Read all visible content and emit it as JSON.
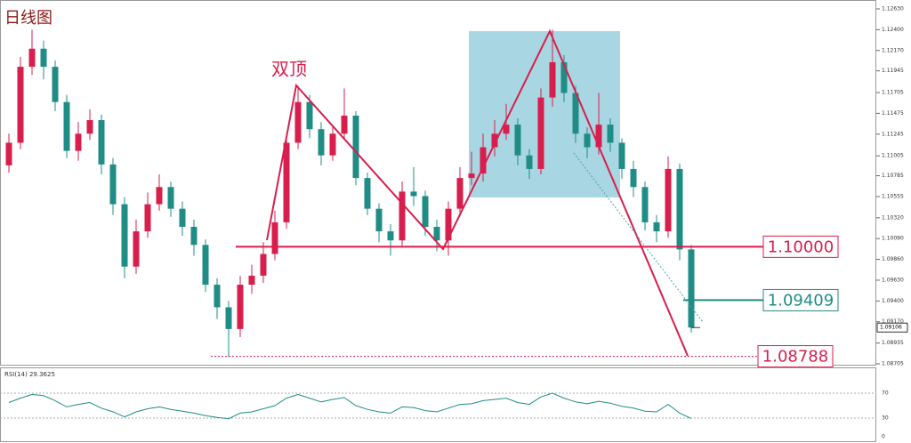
{
  "chart_data": {
    "type": "candlestick",
    "title": "日线图",
    "annotation": "双顶",
    "up_color": "#d81e4c",
    "down_color": "#1f8c86",
    "open": [
      1.109,
      1.1115,
      1.1199,
      1.1219,
      1.1199,
      1.116,
      1.1106,
      1.1125,
      1.114,
      1.1091,
      1.1047,
      1.0978,
      1.1017,
      1.1047,
      1.1066,
      1.1042,
      1.1022,
      1.1002,
      1.0958,
      1.0933,
      1.0909,
      1.0958,
      1.0968,
      1.0992,
      1.1027,
      1.1115,
      1.116,
      1.113,
      1.1101,
      1.1125,
      1.1145,
      1.1076,
      1.1042,
      1.1017,
      1.1007,
      1.1061,
      1.1056,
      1.1022,
      1.1007,
      1.1042,
      1.1076,
      1.1081,
      1.111,
      1.1125,
      1.1135,
      1.1101,
      1.1086,
      1.1165,
      1.1204,
      1.117,
      1.1125,
      1.111,
      1.1135,
      1.1115,
      1.1086,
      1.1066,
      1.1027,
      1.1017,
      1.1086,
      1.0997
    ],
    "high": [
      1.1125,
      1.121,
      1.124,
      1.1228,
      1.1206,
      1.1168,
      1.1138,
      1.1152,
      1.1146,
      1.1098,
      1.1055,
      1.103,
      1.106,
      1.108,
      1.1072,
      1.105,
      1.103,
      1.1008,
      1.0965,
      1.094,
      1.0968,
      1.098,
      1.1005,
      1.104,
      1.1125,
      1.1178,
      1.1168,
      1.1138,
      1.1135,
      1.1175,
      1.115,
      1.1082,
      1.1048,
      1.1025,
      1.1072,
      1.1088,
      1.1062,
      1.103,
      1.105,
      1.1088,
      1.1105,
      1.1125,
      1.114,
      1.1158,
      1.1142,
      1.1108,
      1.1175,
      1.124,
      1.1212,
      1.1178,
      1.1132,
      1.117,
      1.1142,
      1.112,
      1.1095,
      1.1072,
      1.1035,
      1.11,
      1.1092,
      1.1002
    ],
    "low": [
      1.1082,
      1.1108,
      1.119,
      1.1185,
      1.115,
      1.1098,
      1.1095,
      1.1118,
      1.108,
      1.1035,
      1.0965,
      1.097,
      1.101,
      1.104,
      1.1033,
      1.1012,
      1.099,
      1.095,
      1.092,
      1.0878,
      1.09,
      1.0948,
      1.096,
      1.0985,
      1.102,
      1.1108,
      1.112,
      1.109,
      1.1095,
      1.1118,
      1.1068,
      1.1035,
      1.1005,
      1.099,
      1.1,
      1.1045,
      1.1012,
      1.0995,
      1.099,
      1.1035,
      1.1068,
      1.1072,
      1.11,
      1.1118,
      1.109,
      1.1075,
      1.108,
      1.1155,
      1.116,
      1.1115,
      1.1098,
      1.1102,
      1.1105,
      1.1075,
      1.1055,
      1.1018,
      1.1005,
      1.101,
      1.0985,
      1.0905
    ],
    "close": [
      1.1115,
      1.1199,
      1.1219,
      1.1199,
      1.116,
      1.1106,
      1.1125,
      1.114,
      1.1091,
      1.1047,
      1.0978,
      1.1017,
      1.1047,
      1.1066,
      1.1042,
      1.1022,
      1.1002,
      1.0958,
      1.0933,
      1.0909,
      1.0958,
      1.0968,
      1.0992,
      1.1027,
      1.1115,
      1.116,
      1.113,
      1.1101,
      1.1125,
      1.1145,
      1.1076,
      1.1042,
      1.1017,
      1.1007,
      1.1061,
      1.1056,
      1.1022,
      1.1007,
      1.1042,
      1.1076,
      1.1081,
      1.111,
      1.1125,
      1.1135,
      1.1101,
      1.1086,
      1.1165,
      1.1204,
      1.117,
      1.1125,
      1.111,
      1.1135,
      1.1115,
      1.1086,
      1.1066,
      1.1027,
      1.1017,
      1.1086,
      1.0997,
      1.09106
    ],
    "ylim": [
      1.08705,
      1.1263
    ],
    "yticks": [
      {
        "value": 1.1263,
        "label": "1.12630"
      },
      {
        "value": 1.124,
        "label": "1.12400"
      },
      {
        "value": 1.1217,
        "label": "1.12170"
      },
      {
        "value": 1.11945,
        "label": "1.11945"
      },
      {
        "value": 1.11705,
        "label": "1.11705"
      },
      {
        "value": 1.11475,
        "label": "1.11475"
      },
      {
        "value": 1.11245,
        "label": "1.11245"
      },
      {
        "value": 1.11005,
        "label": "1.11005"
      },
      {
        "value": 1.10785,
        "label": "1.10785"
      },
      {
        "value": 1.10555,
        "label": "1.10555"
      },
      {
        "value": 1.1032,
        "label": "1.10320"
      },
      {
        "value": 1.1009,
        "label": "1.10090"
      },
      {
        "value": 1.0986,
        "label": "1.09860"
      },
      {
        "value": 1.0963,
        "label": "1.09630"
      },
      {
        "value": 1.094,
        "label": "1.09400"
      },
      {
        "value": 1.0917,
        "label": "1.09170"
      },
      {
        "value": 1.08935,
        "label": "1.08935"
      },
      {
        "value": 1.08705,
        "label": "1.08705"
      }
    ],
    "last_price": {
      "value": 1.09106,
      "label": "1.09106"
    },
    "levels": [
      {
        "value": 1.1,
        "label": "1.10000",
        "color": "#d81e4c"
      },
      {
        "value": 1.09409,
        "label": "1.09409",
        "color": "#1f8c86"
      },
      {
        "value": 1.08788,
        "label": "1.08788",
        "color": "#d81e4c"
      }
    ],
    "rsi": {
      "label": "RSI(14) 29.3625",
      "color": "#1f8c86",
      "ylim": [
        0,
        100
      ],
      "yticks": [
        70,
        30,
        0
      ],
      "values": [
        55,
        62,
        68,
        66,
        58,
        48,
        52,
        55,
        46,
        40,
        32,
        40,
        45,
        48,
        44,
        41,
        38,
        34,
        31,
        29,
        38,
        40,
        45,
        50,
        62,
        68,
        62,
        56,
        60,
        63,
        50,
        44,
        40,
        38,
        48,
        47,
        42,
        40,
        46,
        52,
        53,
        58,
        60,
        62,
        55,
        52,
        64,
        70,
        62,
        56,
        53,
        57,
        54,
        49,
        46,
        41,
        40,
        52,
        38,
        29.3625
      ]
    }
  }
}
